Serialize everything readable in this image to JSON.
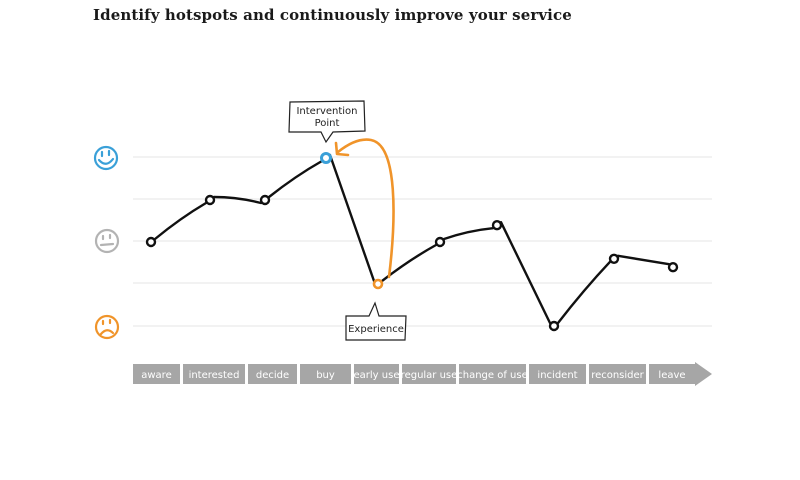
{
  "title": "Identify hotspots and continuously improve your service",
  "stages": [
    "aware",
    "interested",
    "decide",
    "buy",
    "early use",
    "regular use",
    "change of use",
    "incident",
    "reconsider",
    "leave"
  ],
  "moods": [
    {
      "name": "happy-face-icon",
      "color": "#3aa0d8"
    },
    {
      "name": "neutral-face-icon",
      "color": "#b3b3b3"
    },
    {
      "name": "sad-face-icon",
      "color": "#f0942a"
    }
  ],
  "journey": {
    "points": [
      {
        "stage": "aware",
        "level": 2
      },
      {
        "stage": "interested",
        "level": 3
      },
      {
        "stage": "decide",
        "level": 3
      },
      {
        "stage": "buy",
        "level": 4
      },
      {
        "stage": "early use",
        "level": 1
      },
      {
        "stage": "regular use",
        "level": 2
      },
      {
        "stage": "change of use",
        "level": 2.4
      },
      {
        "stage": "incident",
        "level": 0
      },
      {
        "stage": "reconsider",
        "level": 1.6
      },
      {
        "stage": "leave",
        "level": 1.4
      }
    ]
  },
  "callouts": {
    "intervention": "Intervention Point",
    "experience": "Experience"
  },
  "colors": {
    "line": "#111111",
    "highlight_blue": "#3aa0d8",
    "highlight_orange": "#f0942a",
    "stage_bar": "#a6a6a6",
    "grid": "#e6e6e6"
  }
}
